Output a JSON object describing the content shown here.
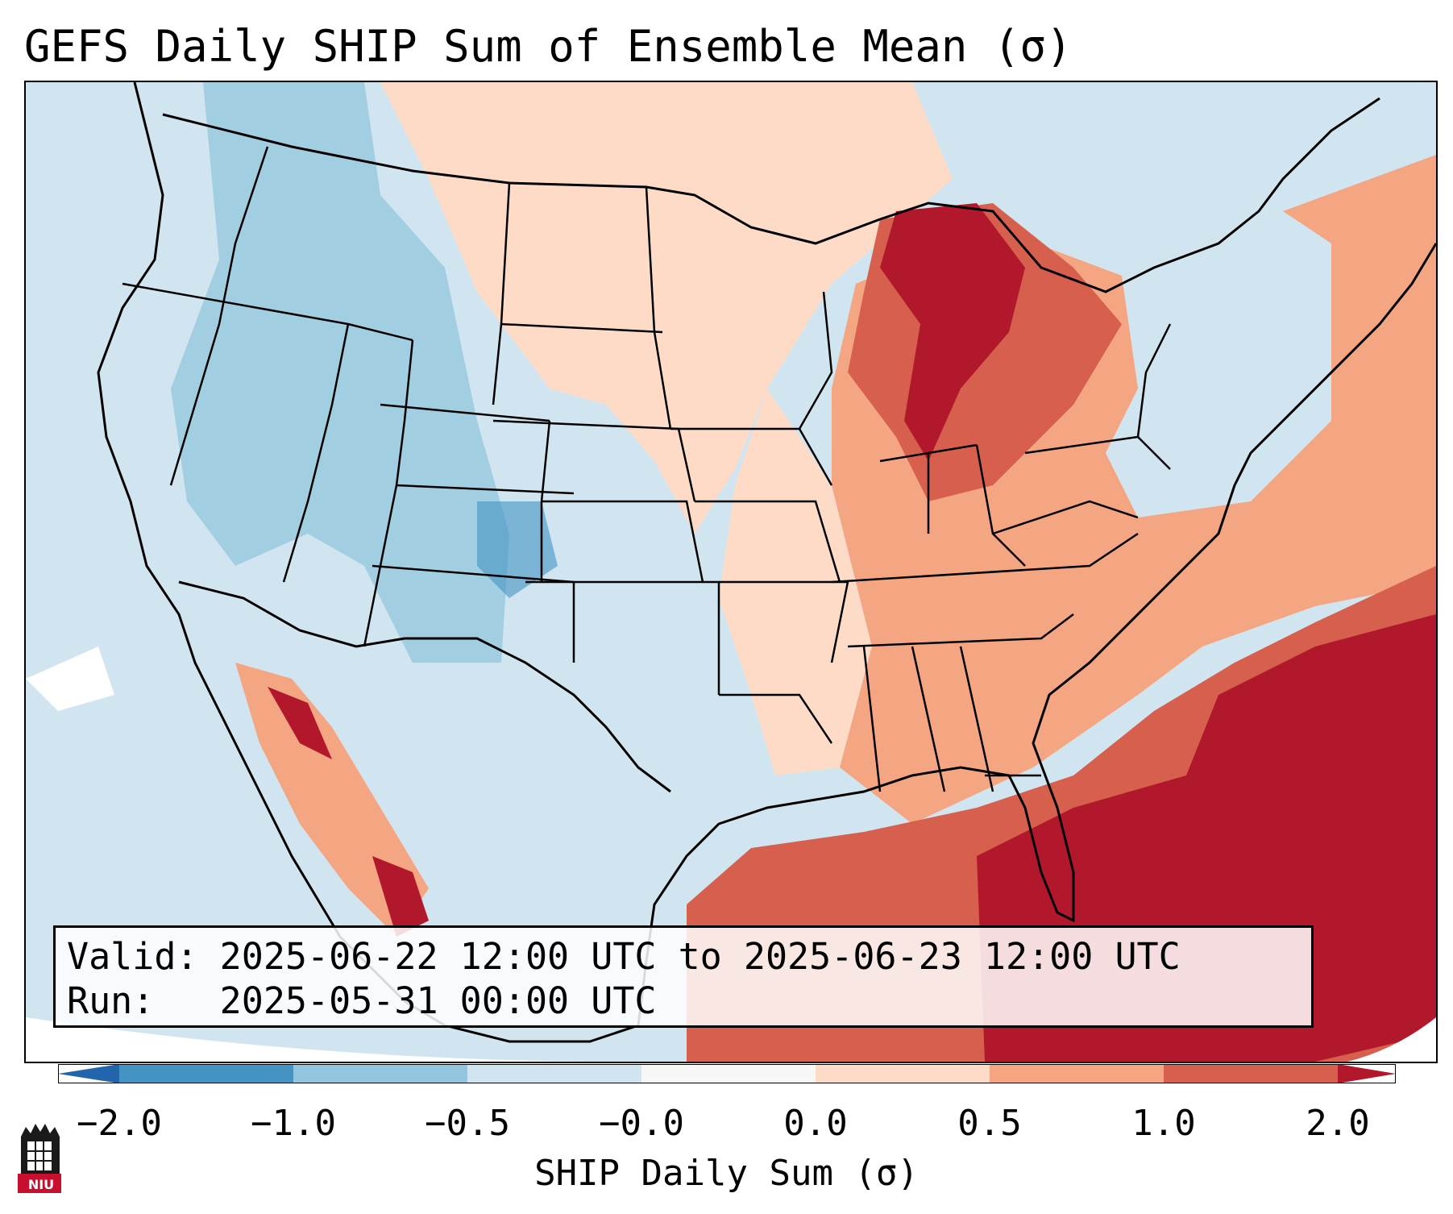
{
  "title": "GEFS Daily SHIP Sum of Ensemble Mean (σ)",
  "info": {
    "valid_label": "Valid:",
    "valid_value": "2025-06-22 12:00 UTC to 2025-06-23 12:00 UTC",
    "run_label": "Run:",
    "run_value": "2025-05-31 00:00 UTC"
  },
  "colorbar": {
    "label": "SHIP Daily Sum (σ)",
    "ticks": [
      "−2.0",
      "−1.0",
      "−0.5",
      "−0.0",
      "0.0",
      "0.5",
      "1.0",
      "2.0"
    ],
    "colors": [
      "#4393c3",
      "#92c5de",
      "#d1e5f0",
      "#f7f7f7",
      "#fddbc7",
      "#f4a582",
      "#d6604d"
    ],
    "extend_low": "#2166ac",
    "extend_high": "#b2182b"
  },
  "logo": {
    "text": "NIU"
  }
}
